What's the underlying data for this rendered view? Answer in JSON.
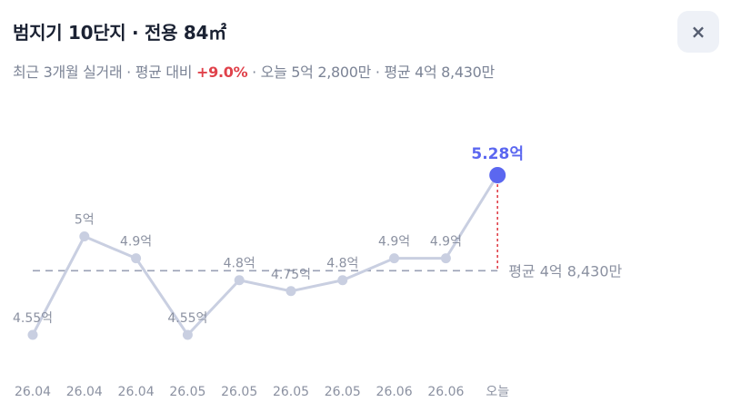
{
  "header": {
    "title": "범지기 10단지 · 전용 84㎡",
    "close_label": "×"
  },
  "subtitle": {
    "prefix": "최근 3개월 실거래 · 평균 대비 ",
    "diff": "+9.0%",
    "suffix": " · 오늘 5억 2,800만 · 평균 4억 8,430만"
  },
  "colors": {
    "line": "#c9cfe1",
    "accent": "#5b67f0",
    "avg_line": "#9aa1b5",
    "drop_line": "#e0424b",
    "label": "#8b91a1",
    "negative": "#e0424b"
  },
  "chart_data": {
    "type": "line",
    "categories": [
      "26.04",
      "26.04",
      "26.04",
      "26.05",
      "26.05",
      "26.05",
      "26.05",
      "26.06",
      "26.06",
      "오늘"
    ],
    "values": [
      4.55,
      5.0,
      4.9,
      4.55,
      4.8,
      4.75,
      4.8,
      4.9,
      4.9,
      5.28
    ],
    "data_labels": [
      "4.55억",
      "5억",
      "4.9억",
      "4.55억",
      "4.8억",
      "4.75억",
      "4.8억",
      "4.9억",
      "4.9억",
      "5.28억"
    ],
    "average": 4.843,
    "average_label": "평균 4억 8,430만",
    "highlight_index": 9,
    "ylim": [
      4.55,
      5.28
    ]
  }
}
